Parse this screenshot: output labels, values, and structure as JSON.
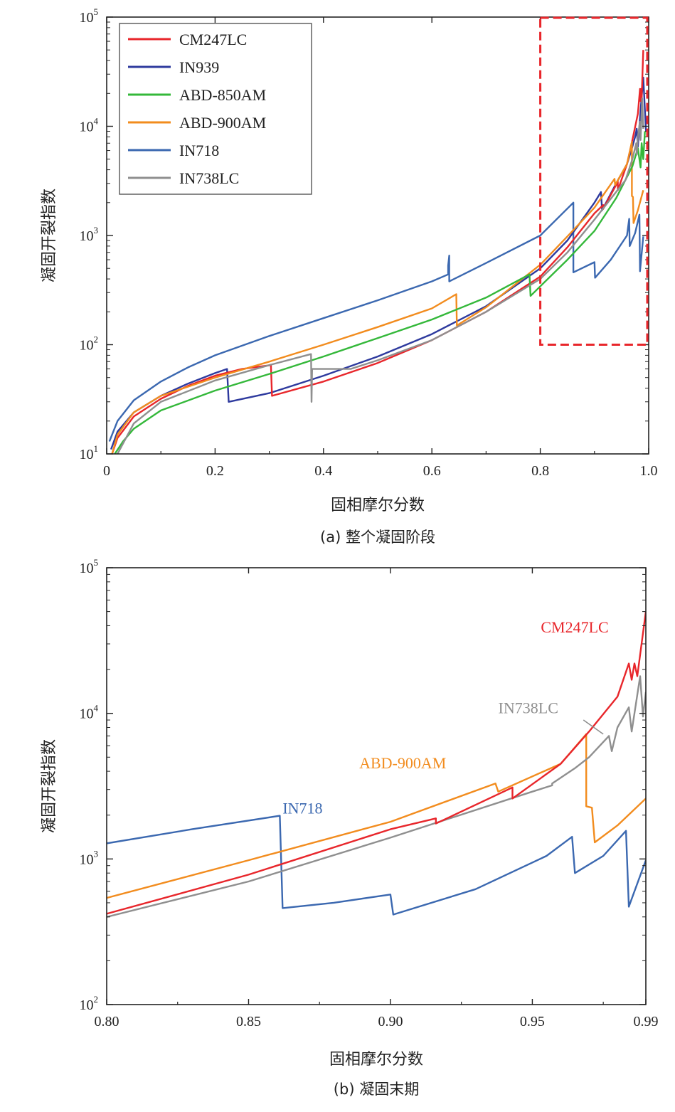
{
  "colors": {
    "CM247LC": "#e8262b",
    "IN939": "#2e3a9e",
    "ABD-850AM": "#34b83a",
    "ABD-900AM": "#f28c1e",
    "IN718": "#3b68b0",
    "IN738LC": "#8f8f8f",
    "zoom_box": "#e8262b"
  },
  "chart_data": [
    {
      "type": "line",
      "caption": "(a) 整个凝固阶段",
      "xlabel": "固相摩尔分数",
      "ylabel": "凝固开裂指数",
      "xlim": [
        0,
        1.0
      ],
      "ylim": [
        10,
        100000
      ],
      "yscale": "log",
      "xticks": [
        "0",
        "0.2",
        "0.4",
        "0.6",
        "0.8",
        "1.0"
      ],
      "yticks": [
        {
          "base": "10",
          "exp": "1"
        },
        {
          "base": "10",
          "exp": "2"
        },
        {
          "base": "10",
          "exp": "3"
        },
        {
          "base": "10",
          "exp": "4"
        },
        {
          "base": "10",
          "exp": "5"
        }
      ],
      "legend": {
        "position": "top-left",
        "entries": [
          "CM247LC",
          "IN939",
          "ABD-850AM",
          "ABD-900AM",
          "IN718",
          "IN738LC"
        ]
      },
      "zoom_box": {
        "x": [
          0.8,
          1.0
        ],
        "y": [
          100,
          100000
        ]
      },
      "series": [
        {
          "name": "IN718",
          "points": [
            [
              0.005,
              13
            ],
            [
              0.02,
              20
            ],
            [
              0.05,
              31
            ],
            [
              0.1,
              46
            ],
            [
              0.15,
              62
            ],
            [
              0.2,
              80
            ],
            [
              0.3,
              120
            ],
            [
              0.4,
              175
            ],
            [
              0.5,
              255
            ],
            [
              0.6,
              380
            ],
            [
              0.63,
              440
            ],
            [
              0.63,
              530
            ],
            [
              0.632,
              655
            ],
            [
              0.632,
              380
            ],
            [
              0.7,
              560
            ],
            [
              0.8,
              1000
            ],
            [
              0.861,
              2000
            ],
            [
              0.861,
              460
            ],
            [
              0.9,
              570
            ],
            [
              0.901,
              410
            ],
            [
              0.93,
              600
            ],
            [
              0.96,
              1000
            ],
            [
              0.964,
              1420
            ],
            [
              0.965,
              800
            ],
            [
              0.975,
              1050
            ],
            [
              0.983,
              1550
            ],
            [
              0.984,
              470
            ],
            [
              0.99,
              980
            ]
          ]
        },
        {
          "name": "IN939",
          "points": [
            [
              0.008,
              11
            ],
            [
              0.02,
              16
            ],
            [
              0.05,
              24
            ],
            [
              0.1,
              34
            ],
            [
              0.15,
              44
            ],
            [
              0.2,
              55
            ],
            [
              0.222,
              60
            ],
            [
              0.225,
              30
            ],
            [
              0.3,
              36
            ],
            [
              0.4,
              52
            ],
            [
              0.5,
              78
            ],
            [
              0.6,
              125
            ],
            [
              0.7,
              225
            ],
            [
              0.8,
              500
            ],
            [
              0.85,
              900
            ],
            [
              0.9,
              2000
            ],
            [
              0.912,
              2500
            ],
            [
              0.914,
              1700
            ],
            [
              0.94,
              3000
            ],
            [
              0.96,
              4500
            ],
            [
              0.97,
              6500
            ],
            [
              0.975,
              8000
            ],
            [
              0.978,
              9500
            ],
            [
              0.98,
              6500
            ],
            [
              0.985,
              14000
            ],
            [
              0.99,
              28000
            ],
            [
              0.995,
              9000
            ]
          ]
        },
        {
          "name": "CM247LC",
          "points": [
            [
              0.01,
              10
            ],
            [
              0.02,
              14
            ],
            [
              0.05,
              22
            ],
            [
              0.1,
              32
            ],
            [
              0.15,
              42
            ],
            [
              0.2,
              52
            ],
            [
              0.25,
              60
            ],
            [
              0.303,
              65
            ],
            [
              0.305,
              34
            ],
            [
              0.4,
              46
            ],
            [
              0.5,
              68
            ],
            [
              0.6,
              110
            ],
            [
              0.7,
              200
            ],
            [
              0.8,
              420
            ],
            [
              0.85,
              780
            ],
            [
              0.9,
              1600
            ],
            [
              0.916,
              1900
            ],
            [
              0.916,
              1750
            ],
            [
              0.943,
              3100
            ],
            [
              0.943,
              2600
            ],
            [
              0.96,
              4500
            ],
            [
              0.97,
              7500
            ],
            [
              0.98,
              13000
            ],
            [
              0.984,
              22000
            ],
            [
              0.985,
              17000
            ],
            [
              0.986,
              22000
            ],
            [
              0.987,
              18000
            ],
            [
              0.99,
              50000
            ]
          ]
        },
        {
          "name": "ABD-900AM",
          "points": [
            [
              0.01,
              10
            ],
            [
              0.02,
              15
            ],
            [
              0.05,
              24
            ],
            [
              0.1,
              34
            ],
            [
              0.2,
              50
            ],
            [
              0.3,
              70
            ],
            [
              0.4,
              100
            ],
            [
              0.5,
              145
            ],
            [
              0.6,
              215
            ],
            [
              0.645,
              290
            ],
            [
              0.646,
              150
            ],
            [
              0.7,
              220
            ],
            [
              0.8,
              540
            ],
            [
              0.85,
              980
            ],
            [
              0.9,
              1800
            ],
            [
              0.937,
              3300
            ],
            [
              0.938,
              2900
            ],
            [
              0.96,
              4500
            ],
            [
              0.969,
              7200
            ],
            [
              0.969,
              2300
            ],
            [
              0.971,
              2250
            ],
            [
              0.972,
              1300
            ],
            [
              0.98,
              1700
            ],
            [
              0.99,
              2600
            ]
          ]
        },
        {
          "name": "ABD-850AM",
          "points": [
            [
              0.015,
              10
            ],
            [
              0.03,
              13
            ],
            [
              0.05,
              17
            ],
            [
              0.1,
              25
            ],
            [
              0.2,
              38
            ],
            [
              0.3,
              54
            ],
            [
              0.4,
              78
            ],
            [
              0.5,
              115
            ],
            [
              0.6,
              170
            ],
            [
              0.7,
              270
            ],
            [
              0.78,
              440
            ],
            [
              0.782,
              280
            ],
            [
              0.85,
              600
            ],
            [
              0.9,
              1100
            ],
            [
              0.94,
              2200
            ],
            [
              0.97,
              4300
            ],
            [
              0.98,
              6300
            ],
            [
              0.985,
              4200
            ],
            [
              0.987,
              7000
            ],
            [
              0.99,
              5000
            ],
            [
              0.993,
              9000
            ]
          ]
        },
        {
          "name": "IN738LC",
          "points": [
            [
              0.02,
              10
            ],
            [
              0.05,
              19
            ],
            [
              0.1,
              30
            ],
            [
              0.2,
              47
            ],
            [
              0.3,
              65
            ],
            [
              0.377,
              82
            ],
            [
              0.378,
              30
            ],
            [
              0.379,
              60
            ],
            [
              0.45,
              60
            ],
            [
              0.5,
              72
            ],
            [
              0.6,
              110
            ],
            [
              0.7,
              200
            ],
            [
              0.8,
              400
            ],
            [
              0.85,
              700
            ],
            [
              0.9,
              1400
            ],
            [
              0.95,
              2900
            ],
            [
              0.957,
              3200
            ],
            [
              0.958,
              3300
            ],
            [
              0.965,
              4200
            ],
            [
              0.97,
              5000
            ],
            [
              0.977,
              7000
            ],
            [
              0.978,
              5500
            ],
            [
              0.98,
              8000
            ],
            [
              0.984,
              11000
            ],
            [
              0.985,
              7500
            ],
            [
              0.988,
              18000
            ],
            [
              0.99,
              9500
            ]
          ]
        }
      ]
    },
    {
      "type": "line",
      "caption": "(b) 凝固末期",
      "xlabel": "固相摩尔分数",
      "ylabel": "凝固开裂指数",
      "xlim": [
        0.8,
        0.99
      ],
      "ylim": [
        100,
        100000
      ],
      "yscale": "log",
      "xticks": [
        "0.80",
        "0.85",
        "0.90",
        "0.95",
        "0.99"
      ],
      "xtick_values": [
        0.8,
        0.85,
        0.9,
        0.95,
        0.99
      ],
      "yticks": [
        {
          "base": "10",
          "exp": "2"
        },
        {
          "base": "10",
          "exp": "3"
        },
        {
          "base": "10",
          "exp": "4"
        },
        {
          "base": "10",
          "exp": "5"
        }
      ],
      "annotations": [
        {
          "text": "CM247LC",
          "series": "CM247LC",
          "x": 0.953,
          "y": 36000
        },
        {
          "text": "IN738LC",
          "series": "IN738LC",
          "x": 0.938,
          "y": 10000
        },
        {
          "text": "ABD-900AM",
          "series": "ABD-900AM",
          "x": 0.889,
          "y": 4200
        },
        {
          "text": "IN718",
          "series": "IN718",
          "x": 0.862,
          "y": 2050
        }
      ],
      "series": [
        {
          "name": "IN718",
          "points": [
            [
              0.8,
              1280
            ],
            [
              0.83,
              1600
            ],
            [
              0.861,
              1980
            ],
            [
              0.861,
              1980
            ],
            [
              0.862,
              460
            ],
            [
              0.88,
              500
            ],
            [
              0.9,
              570
            ],
            [
              0.901,
              415
            ],
            [
              0.93,
              620
            ],
            [
              0.955,
              1050
            ],
            [
              0.964,
              1420
            ],
            [
              0.965,
              800
            ],
            [
              0.975,
              1050
            ],
            [
              0.983,
              1560
            ],
            [
              0.984,
              470
            ],
            [
              0.99,
              980
            ]
          ]
        },
        {
          "name": "ABD-900AM",
          "points": [
            [
              0.8,
              540
            ],
            [
              0.85,
              980
            ],
            [
              0.9,
              1800
            ],
            [
              0.937,
              3300
            ],
            [
              0.938,
              2900
            ],
            [
              0.96,
              4500
            ],
            [
              0.969,
              7200
            ],
            [
              0.969,
              2300
            ],
            [
              0.971,
              2250
            ],
            [
              0.972,
              1300
            ],
            [
              0.98,
              1700
            ],
            [
              0.99,
              2600
            ]
          ]
        },
        {
          "name": "IN738LC",
          "points": [
            [
              0.8,
              400
            ],
            [
              0.85,
              700
            ],
            [
              0.9,
              1400
            ],
            [
              0.95,
              2900
            ],
            [
              0.957,
              3200
            ],
            [
              0.957,
              3300
            ],
            [
              0.965,
              4200
            ],
            [
              0.97,
              5000
            ],
            [
              0.977,
              7000
            ],
            [
              0.978,
              5500
            ],
            [
              0.98,
              8000
            ],
            [
              0.984,
              11000
            ],
            [
              0.985,
              7500
            ],
            [
              0.988,
              18000
            ],
            [
              0.989,
              9500
            ],
            [
              0.99,
              14000
            ]
          ]
        },
        {
          "name": "CM247LC",
          "points": [
            [
              0.8,
              420
            ],
            [
              0.85,
              780
            ],
            [
              0.9,
              1600
            ],
            [
              0.916,
              1900
            ],
            [
              0.916,
              1750
            ],
            [
              0.943,
              3100
            ],
            [
              0.943,
              2600
            ],
            [
              0.96,
              4500
            ],
            [
              0.97,
              7500
            ],
            [
              0.98,
              13000
            ],
            [
              0.984,
              22000
            ],
            [
              0.985,
              17000
            ],
            [
              0.986,
              22000
            ],
            [
              0.987,
              18000
            ],
            [
              0.99,
              50000
            ]
          ]
        }
      ]
    }
  ]
}
